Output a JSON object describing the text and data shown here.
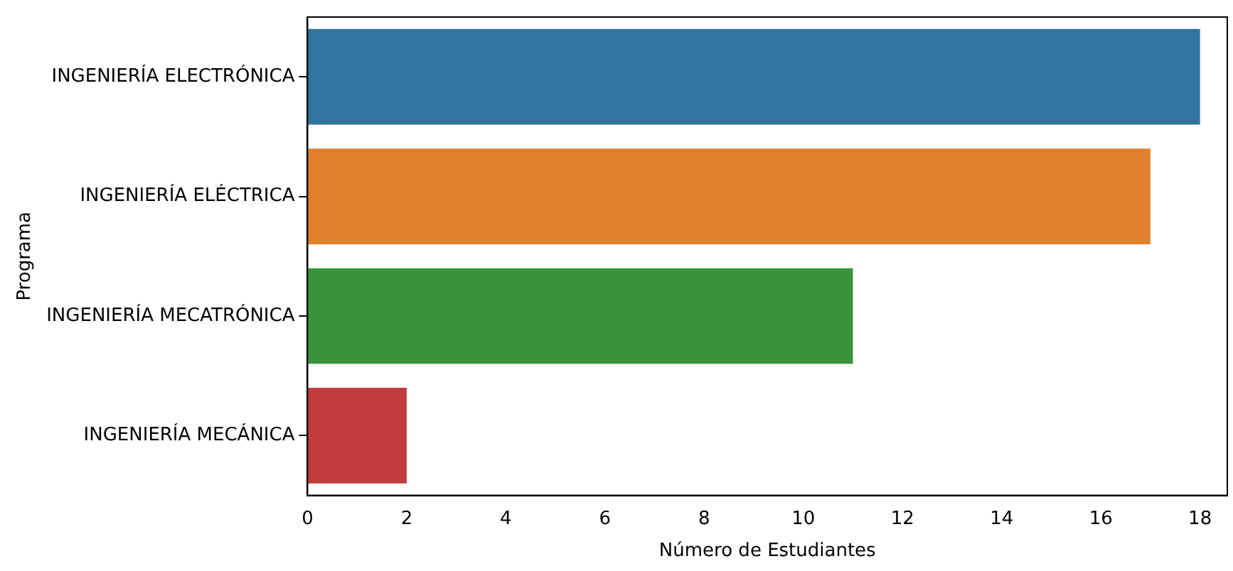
{
  "chart_data": {
    "type": "bar",
    "orientation": "horizontal",
    "xlabel": "Número de Estudiantes",
    "ylabel": "Programa",
    "categories": [
      "INGENIERÍA ELECTRÓNICA",
      "INGENIERÍA ELÉCTRICA",
      "INGENIERÍA MECATRÓNICA",
      "INGENIERÍA MECÁNICA"
    ],
    "values": [
      18,
      17,
      11,
      2
    ],
    "colors": [
      "#3274a1",
      "#e1812c",
      "#3a923a",
      "#c03d3e"
    ],
    "xlim": [
      0,
      18.55
    ],
    "xticks": [
      0,
      2,
      4,
      6,
      8,
      10,
      12,
      14,
      16,
      18
    ],
    "grid": false,
    "legend": false
  }
}
